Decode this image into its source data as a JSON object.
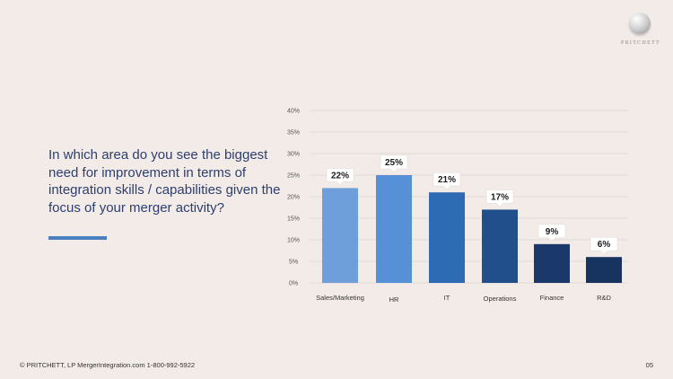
{
  "brand": {
    "logo_text": "PRITCHETT"
  },
  "question": "In which area do you see the biggest need for improvement in terms of integration skills / capabilities given the focus of your merger activity?",
  "colors": {
    "accent": "#4a7fc0",
    "background": "#f3ebe8",
    "question_text": "#2c3f6e",
    "bars": [
      "#6f9fdb",
      "#5690d6",
      "#2d6bb4",
      "#214f8c",
      "#1a3869",
      "#17335f"
    ]
  },
  "chart_data": {
    "type": "bar",
    "categories": [
      "Sales/Marketing",
      "HR",
      "IT",
      "Operations",
      "Finance",
      "R&D"
    ],
    "values": [
      22,
      25,
      21,
      17,
      9,
      6
    ],
    "value_labels": [
      "22%",
      "25%",
      "21%",
      "17%",
      "9%",
      "6%"
    ],
    "ylim": [
      0,
      40
    ],
    "yticks": [
      "0%",
      "5%",
      "10%",
      "15%",
      "20%",
      "25%",
      "30%",
      "35%",
      "40%"
    ],
    "grid": true,
    "legend": "none",
    "title": "",
    "xlabel": "",
    "ylabel": ""
  },
  "footer": {
    "left": "© PRITCHETT, LP MergerIntegration.com 1-800-992-5922",
    "page_number": "05"
  }
}
